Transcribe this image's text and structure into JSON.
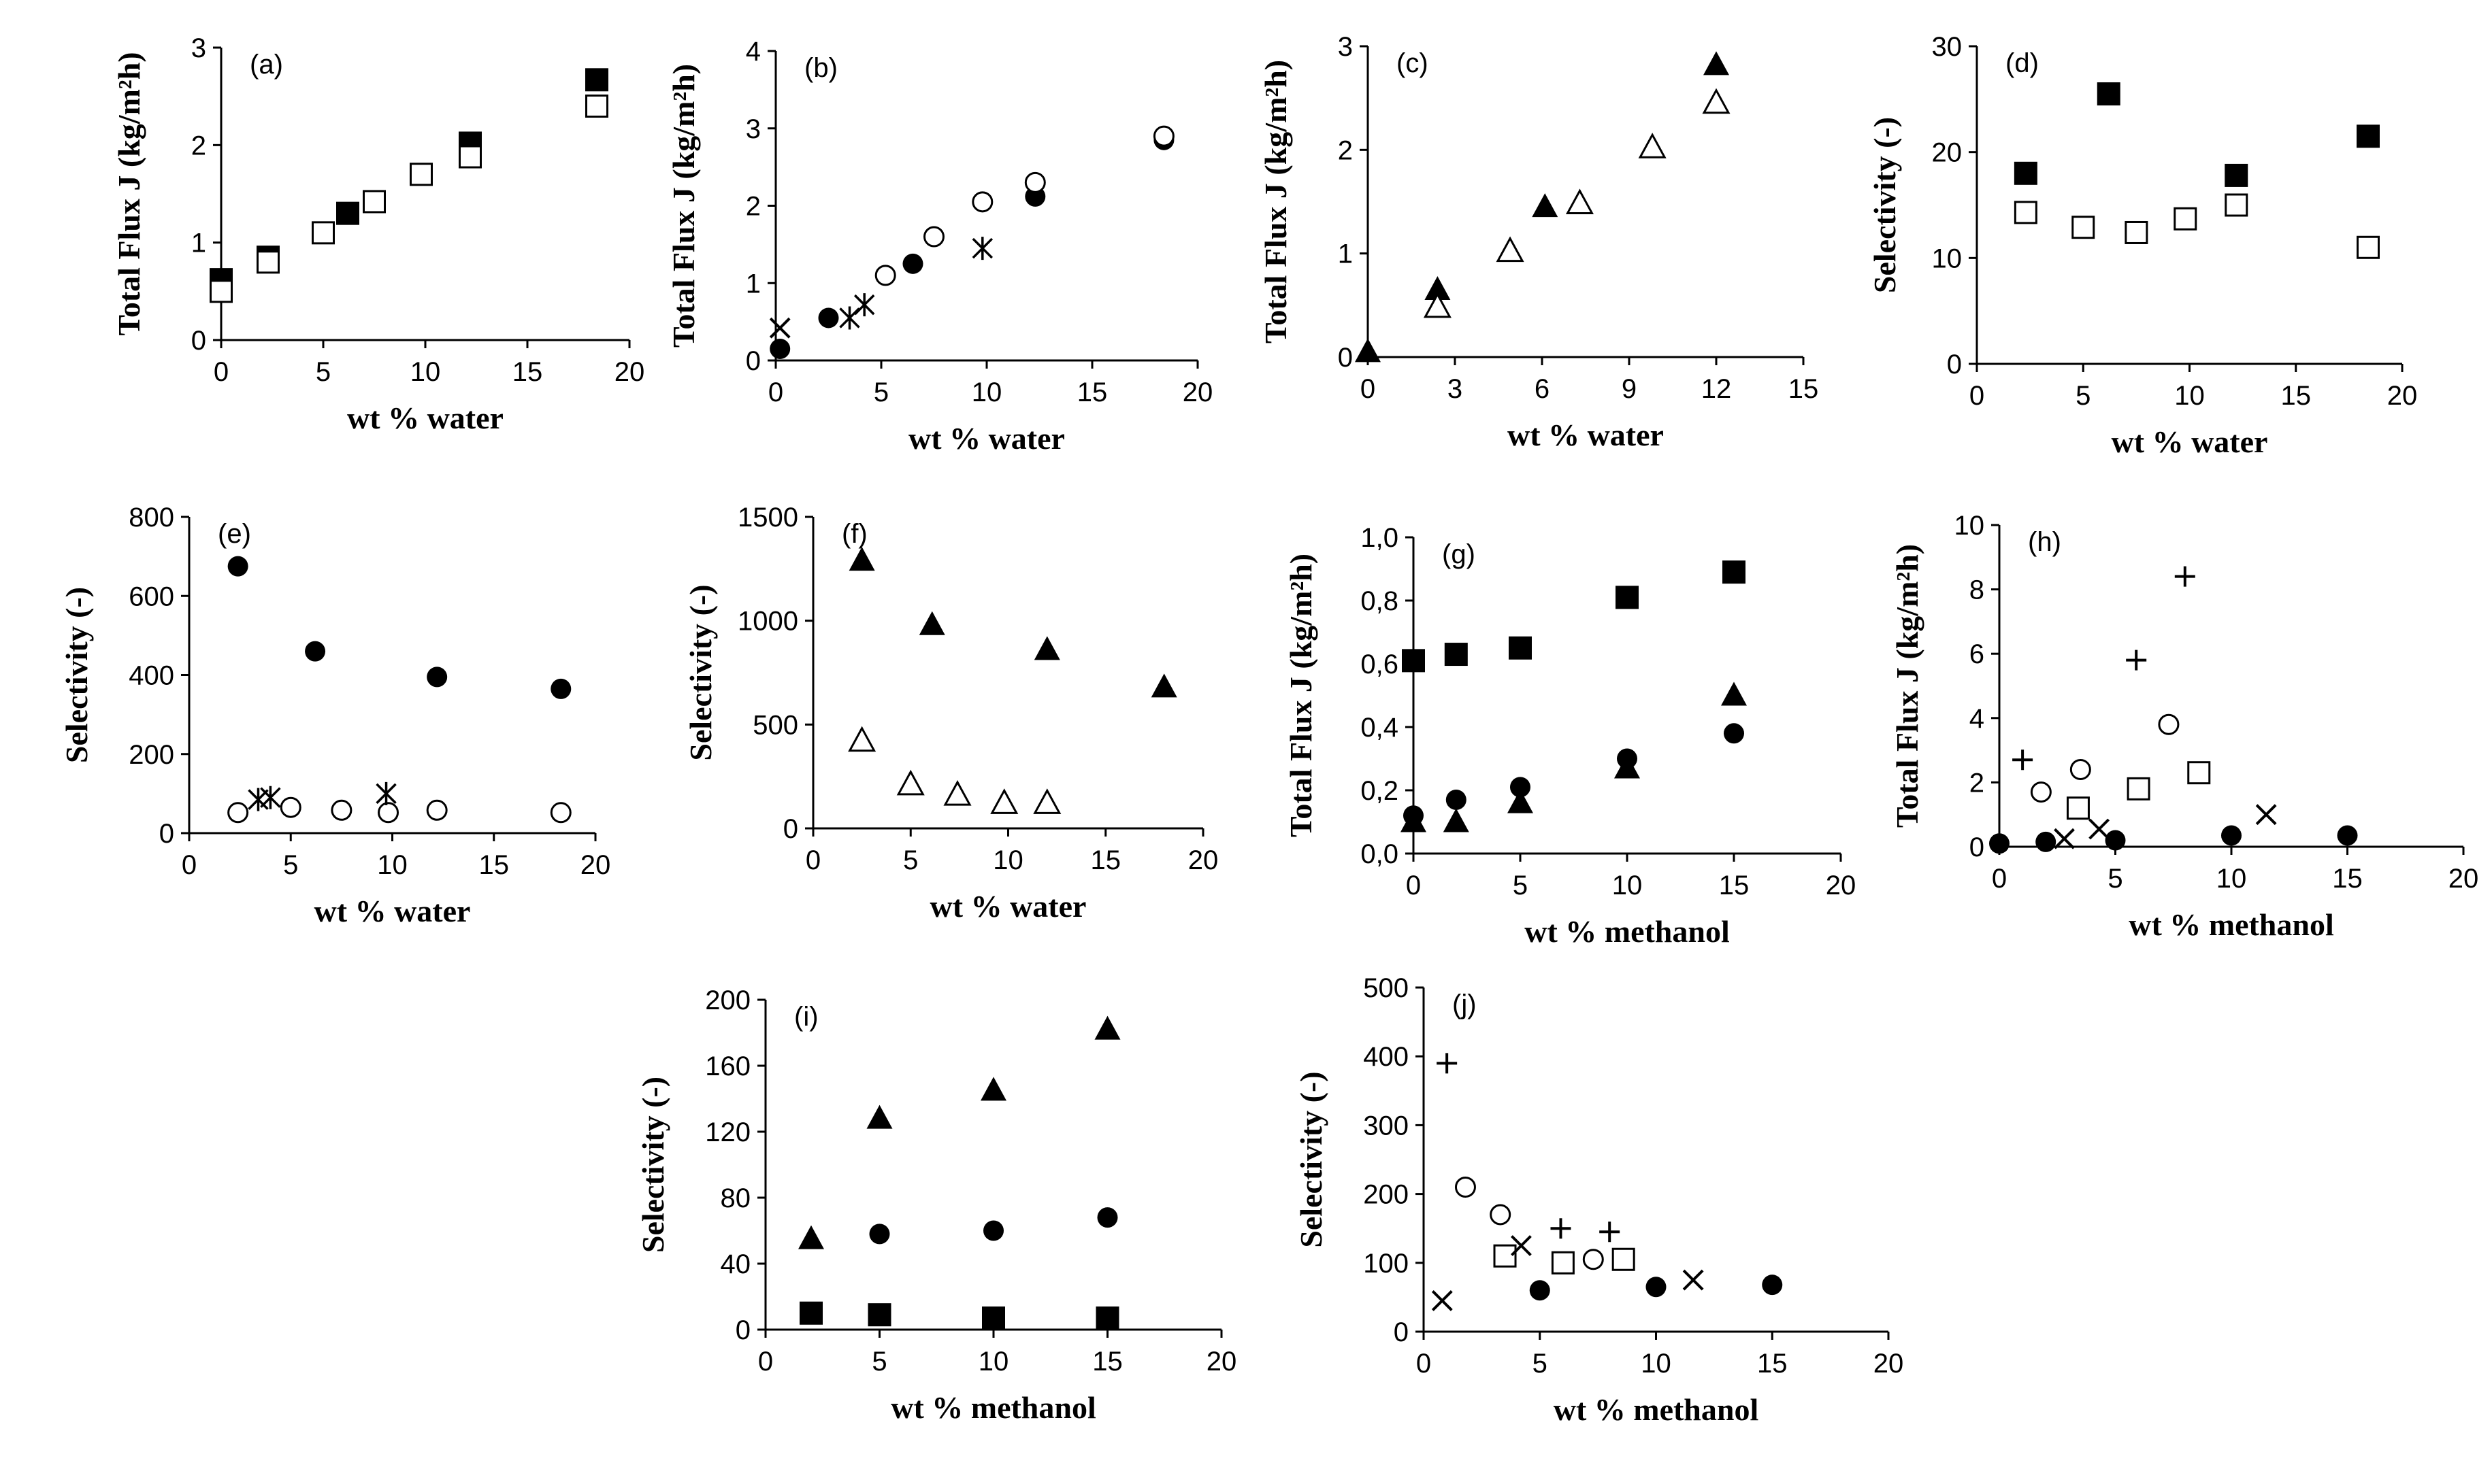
{
  "chart_data": [
    {
      "panel": "(a)",
      "type": "scatter",
      "xlabel": "wt % water",
      "ylabel": "Total Flux J (kg/m²h)",
      "xlim": [
        0,
        20
      ],
      "ylim": [
        0,
        3
      ],
      "xticks": [
        "0",
        "5",
        "10",
        "15",
        "20"
      ],
      "yticks": [
        "0",
        "1",
        "2",
        "3"
      ],
      "series": [
        {
          "marker": "square-filled",
          "x": [
            0,
            2.3,
            6.2,
            12.2,
            18.4
          ],
          "y": [
            0.62,
            0.85,
            1.3,
            2.02,
            2.67
          ]
        },
        {
          "marker": "square-open",
          "x": [
            0,
            2.3,
            5,
            7.5,
            9.8,
            12.2,
            18.4
          ],
          "y": [
            0.5,
            0.8,
            1.1,
            1.42,
            1.7,
            1.88,
            2.4
          ]
        }
      ]
    },
    {
      "panel": "(b)",
      "type": "scatter",
      "xlabel": "wt % water",
      "ylabel": "Total Flux J (kg/m²h)",
      "xlim": [
        0,
        20
      ],
      "ylim": [
        0,
        4
      ],
      "xticks": [
        "0",
        "5",
        "10",
        "15",
        "20"
      ],
      "yticks": [
        "0",
        "1",
        "2",
        "3",
        "4"
      ],
      "series": [
        {
          "marker": "circle-filled",
          "x": [
            0.2,
            2.5,
            6.5,
            12.3,
            18.4
          ],
          "y": [
            0.15,
            0.55,
            1.25,
            2.12,
            2.85
          ]
        },
        {
          "marker": "circle-open",
          "x": [
            5.2,
            7.5,
            9.8,
            12.3,
            18.4
          ],
          "y": [
            1.1,
            1.6,
            2.05,
            2.3,
            2.9
          ]
        },
        {
          "marker": "asterisk",
          "x": [
            3.5,
            4.2,
            9.8
          ],
          "y": [
            0.55,
            0.72,
            1.45
          ]
        },
        {
          "marker": "cross",
          "x": [
            0.2
          ],
          "y": [
            0.42
          ]
        }
      ]
    },
    {
      "panel": "(c)",
      "type": "scatter",
      "xlabel": "wt % water",
      "ylabel": "Total Flux J (kg/m²h)",
      "xlim": [
        0,
        15
      ],
      "ylim": [
        0,
        3
      ],
      "xticks": [
        "0",
        "3",
        "6",
        "9",
        "12",
        "15"
      ],
      "yticks": [
        "0",
        "1",
        "2",
        "3"
      ],
      "series": [
        {
          "marker": "triangle-filled",
          "x": [
            0,
            2.4,
            6.1,
            12
          ],
          "y": [
            0.05,
            0.65,
            1.45,
            2.82
          ]
        },
        {
          "marker": "triangle-open",
          "x": [
            2.4,
            4.9,
            7.3,
            9.8,
            12
          ],
          "y": [
            0.48,
            1.02,
            1.48,
            2.02,
            2.45
          ]
        }
      ]
    },
    {
      "panel": "(d)",
      "type": "scatter",
      "xlabel": "wt % water",
      "ylabel": "Selectivity (-)",
      "xlim": [
        0,
        20
      ],
      "ylim": [
        0,
        30
      ],
      "xticks": [
        "0",
        "5",
        "10",
        "15",
        "20"
      ],
      "yticks": [
        "0",
        "10",
        "20",
        "30"
      ],
      "series": [
        {
          "marker": "square-filled",
          "x": [
            2.3,
            6.2,
            12.2,
            18.4
          ],
          "y": [
            18,
            25.5,
            17.8,
            21.5
          ]
        },
        {
          "marker": "square-open",
          "x": [
            2.3,
            5,
            7.5,
            9.8,
            12.2,
            18.4
          ],
          "y": [
            14.3,
            12.9,
            12.4,
            13.7,
            15,
            11
          ]
        }
      ]
    },
    {
      "panel": "(e)",
      "type": "scatter",
      "xlabel": "wt % water",
      "ylabel": "Selectivity (-)",
      "xlim": [
        0,
        20
      ],
      "ylim": [
        0,
        800
      ],
      "xticks": [
        "0",
        "5",
        "10",
        "15",
        "20"
      ],
      "yticks": [
        "0",
        "200",
        "400",
        "600",
        "800"
      ],
      "series": [
        {
          "marker": "circle-filled",
          "x": [
            2.4,
            6.2,
            12.2,
            18.3
          ],
          "y": [
            675,
            460,
            395,
            365
          ]
        },
        {
          "marker": "circle-open",
          "x": [
            2.4,
            5,
            7.5,
            9.8,
            12.2,
            18.3
          ],
          "y": [
            52,
            65,
            58,
            52,
            58,
            52
          ]
        },
        {
          "marker": "asterisk",
          "x": [
            3.4,
            4,
            9.7
          ],
          "y": [
            85,
            90,
            100
          ]
        }
      ]
    },
    {
      "panel": "(f)",
      "type": "scatter",
      "xlabel": "wt % water",
      "ylabel": "Selectivity (-)",
      "xlim": [
        0,
        20
      ],
      "ylim": [
        0,
        1500
      ],
      "xticks": [
        "0",
        "5",
        "10",
        "15",
        "20"
      ],
      "yticks": [
        "0",
        "500",
        "1000",
        "1500"
      ],
      "series": [
        {
          "marker": "triangle-filled",
          "x": [
            2.5,
            6.1,
            12,
            18
          ],
          "y": [
            1290,
            980,
            860,
            680
          ]
        },
        {
          "marker": "triangle-open",
          "x": [
            2.5,
            5,
            7.4,
            9.8,
            12
          ],
          "y": [
            420,
            210,
            160,
            120,
            120
          ]
        }
      ]
    },
    {
      "panel": "(g)",
      "type": "scatter",
      "xlabel": "wt % methanol",
      "ylabel": "Total Flux J (kg/m²h)",
      "xlim": [
        0,
        20
      ],
      "ylim": [
        0,
        1.0
      ],
      "xticks": [
        "0",
        "5",
        "10",
        "15",
        "20"
      ],
      "yticks": [
        "0,0",
        "0,2",
        "0,4",
        "0,6",
        "0,8",
        "1,0"
      ],
      "series": [
        {
          "marker": "square-filled",
          "x": [
            0,
            2,
            5,
            10,
            15
          ],
          "y": [
            0.61,
            0.63,
            0.65,
            0.81,
            0.89
          ]
        },
        {
          "marker": "circle-filled",
          "x": [
            0,
            2,
            5,
            10,
            15
          ],
          "y": [
            0.12,
            0.17,
            0.21,
            0.3,
            0.38
          ]
        },
        {
          "marker": "triangle-filled",
          "x": [
            0,
            2,
            5,
            10,
            15
          ],
          "y": [
            0.1,
            0.1,
            0.16,
            0.27,
            0.5
          ]
        }
      ]
    },
    {
      "panel": "(h)",
      "type": "scatter",
      "xlabel": "wt % methanol",
      "ylabel": "Total Flux J (kg/m²h)",
      "xlim": [
        0,
        20
      ],
      "ylim": [
        0,
        10
      ],
      "xticks": [
        "0",
        "5",
        "10",
        "15",
        "20"
      ],
      "yticks": [
        "0",
        "2",
        "4",
        "6",
        "8",
        "10"
      ],
      "series": [
        {
          "marker": "plus",
          "x": [
            1,
            5.9,
            8
          ],
          "y": [
            2.7,
            5.8,
            8.4
          ]
        },
        {
          "marker": "circle-open",
          "x": [
            1.8,
            3.5,
            7.3
          ],
          "y": [
            1.7,
            2.4,
            3.8
          ]
        },
        {
          "marker": "square-open",
          "x": [
            3.4,
            6,
            8.6
          ],
          "y": [
            1.2,
            1.8,
            2.3
          ]
        },
        {
          "marker": "cross",
          "x": [
            2.8,
            4.3,
            11.5
          ],
          "y": [
            0.25,
            0.55,
            1
          ]
        },
        {
          "marker": "circle-filled",
          "x": [
            0,
            2,
            5,
            10,
            15
          ],
          "y": [
            0.1,
            0.15,
            0.2,
            0.35,
            0.35
          ]
        }
      ]
    },
    {
      "panel": "(i)",
      "type": "scatter",
      "xlabel": "wt % methanol",
      "ylabel": "Selectivity (-)",
      "xlim": [
        0,
        20
      ],
      "ylim": [
        0,
        200
      ],
      "xticks": [
        "0",
        "5",
        "10",
        "15",
        "20"
      ],
      "yticks": [
        "0",
        "40",
        "80",
        "120",
        "160",
        "200"
      ],
      "series": [
        {
          "marker": "triangle-filled",
          "x": [
            2,
            5,
            10,
            15
          ],
          "y": [
            55,
            128,
            145,
            182
          ]
        },
        {
          "marker": "circle-filled",
          "x": [
            5,
            10,
            15
          ],
          "y": [
            58,
            60,
            68
          ]
        },
        {
          "marker": "square-filled",
          "x": [
            2,
            5,
            10,
            15
          ],
          "y": [
            10,
            9,
            7,
            7
          ]
        }
      ]
    },
    {
      "panel": "(j)",
      "type": "scatter",
      "xlabel": "wt % methanol",
      "ylabel": "Selectivity (-)",
      "xlim": [
        0,
        20
      ],
      "ylim": [
        0,
        500
      ],
      "xticks": [
        "0",
        "5",
        "10",
        "15",
        "20"
      ],
      "yticks": [
        "0",
        "100",
        "200",
        "300",
        "400",
        "500"
      ],
      "series": [
        {
          "marker": "plus",
          "x": [
            1,
            5.9,
            8
          ],
          "y": [
            390,
            150,
            145
          ]
        },
        {
          "marker": "circle-open",
          "x": [
            1.8,
            3.3,
            7.3
          ],
          "y": [
            210,
            170,
            105
          ]
        },
        {
          "marker": "square-open",
          "x": [
            3.5,
            6,
            8.6
          ],
          "y": [
            110,
            100,
            105
          ]
        },
        {
          "marker": "cross",
          "x": [
            0.8,
            4.2,
            11.6
          ],
          "y": [
            45,
            125,
            75
          ]
        },
        {
          "marker": "circle-filled",
          "x": [
            5,
            10,
            15
          ],
          "y": [
            60,
            65,
            68
          ]
        }
      ]
    }
  ]
}
